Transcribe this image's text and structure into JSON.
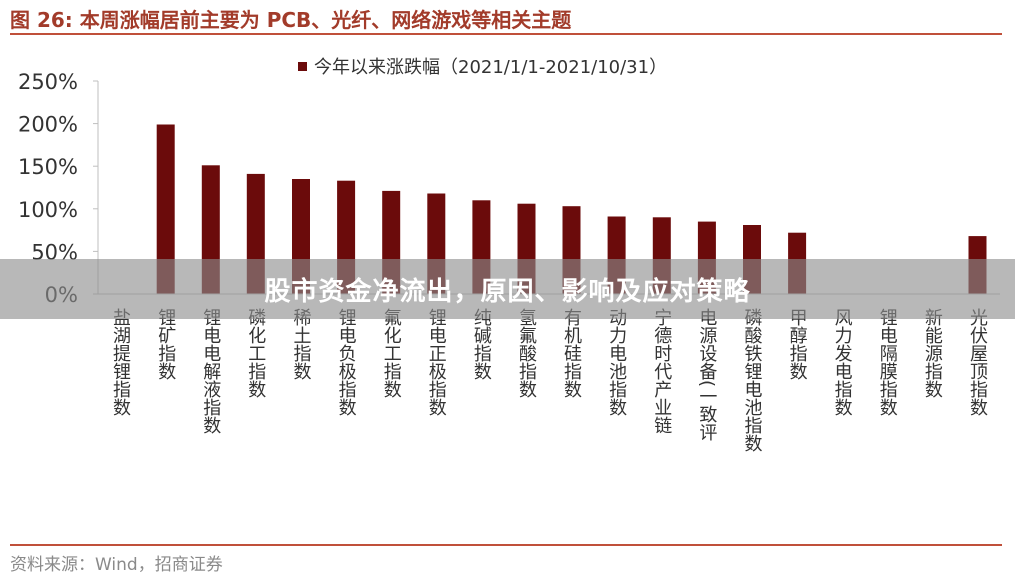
{
  "header": {
    "title": "图 26:  本周涨幅居前主要为 PCB、光纤、网络游戏等相关主题"
  },
  "overlay": {
    "banner_text": "股市资金净流出，原因、影响及应对策略"
  },
  "footer": {
    "source": "资料来源：Wind，招商证券"
  },
  "colors": {
    "bar": "#6b0b0b",
    "title": "#a23b2a",
    "rule": "#c0503a"
  },
  "chart_data": {
    "type": "bar",
    "title": "",
    "xlabel": "",
    "ylabel": "",
    "ylim": [
      0,
      250
    ],
    "y_ticks": [
      "0%",
      "50%",
      "100%",
      "150%",
      "200%",
      "250%"
    ],
    "y_tick_values": [
      0,
      50,
      100,
      150,
      200,
      250
    ],
    "grid": false,
    "legend_position": "top-center",
    "categories": [
      "盐湖提锂指数",
      "锂矿指数",
      "锂电电解液指数",
      "磷化工指数",
      "稀土指数",
      "锂电负极指数",
      "氟化工指数",
      "锂电正极指数",
      "纯碱指数",
      "氢氟酸指数",
      "有机硅指数",
      "动力电池指数",
      "宁德时代产业链",
      "电源设备(一致评",
      "磷酸铁锂电池指数",
      "甲醇指数",
      "风力发电指数",
      "锂电隔膜指数",
      "新能源指数",
      "光伏屋顶指数"
    ],
    "series": [
      {
        "name": "今年以来涨跌幅（2021/1/1-2021/10/31）",
        "values": [
          null,
          199,
          151,
          141,
          135,
          133,
          121,
          118,
          110,
          106,
          103,
          91,
          90,
          85,
          81,
          72,
          null,
          null,
          null,
          68
        ]
      }
    ]
  }
}
